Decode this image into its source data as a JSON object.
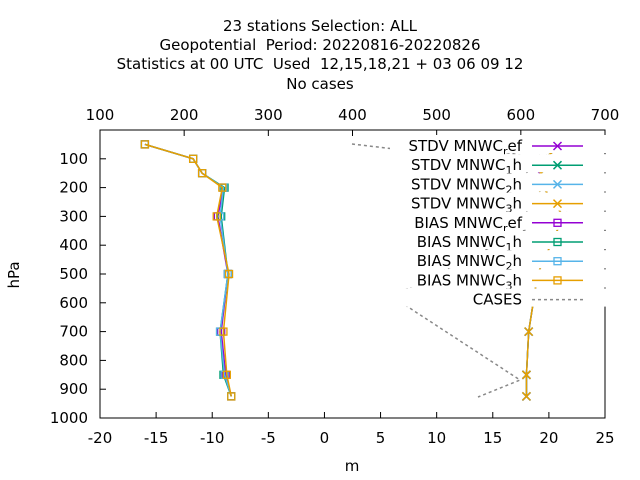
{
  "title_lines": [
    "23 stations Selection: ALL",
    "Geopotential  Period: 20220816-20220826",
    "Statistics at 00 UTC  Used  12,15,18,21 + 03 06 09 12",
    "No cases"
  ],
  "chart_data": {
    "type": "line",
    "xlabel": "m",
    "ylabel": "hPa",
    "xlim": [
      -20,
      25
    ],
    "ylim": [
      1000,
      0
    ],
    "x_ticks": [
      "-20",
      "-15",
      "-10",
      "-5",
      "0",
      "5",
      "10",
      "15",
      "20",
      "25"
    ],
    "y_ticks": [
      "100",
      "200",
      "300",
      "400",
      "500",
      "600",
      "700",
      "800",
      "900",
      "1000"
    ],
    "x2lim": [
      100,
      700
    ],
    "x2_ticks": [
      "100",
      "200",
      "300",
      "400",
      "500",
      "600",
      "700"
    ],
    "legend_position": "top-right",
    "levels": [
      50,
      100,
      150,
      200,
      300,
      500,
      700,
      850,
      925
    ],
    "series": [
      {
        "name": "STDV MNWC_ref",
        "label_main": "STDV MNWC",
        "label_sub": "r",
        "label_tail": "ef",
        "color": "#9400d3",
        "marker": "x",
        "dash": "",
        "axis": "x1",
        "values": [
          21.3,
          19.5,
          19.2,
          19.5,
          21.3,
          19.0,
          18.2,
          18.0,
          18.0
        ]
      },
      {
        "name": "STDV MNWC_1h",
        "label_main": "STDV MNWC",
        "label_sub": "1",
        "label_tail": "h",
        "color": "#009e73",
        "marker": "x",
        "dash": "",
        "axis": "x1",
        "values": [
          21.3,
          19.5,
          19.3,
          19.5,
          21.3,
          19.0,
          18.2,
          18.0,
          18.0
        ]
      },
      {
        "name": "STDV MNWC_2h",
        "label_main": "STDV MNWC",
        "label_sub": "2",
        "label_tail": "h",
        "color": "#56b4e9",
        "marker": "x",
        "dash": "",
        "axis": "x1",
        "values": [
          21.3,
          19.5,
          19.3,
          19.5,
          21.3,
          19.0,
          18.2,
          18.0,
          18.0
        ]
      },
      {
        "name": "STDV MNWC_3h",
        "label_main": "STDV MNWC",
        "label_sub": "3",
        "label_tail": "h",
        "color": "#e69f00",
        "marker": "x",
        "dash": "",
        "axis": "x1",
        "values": [
          21.3,
          19.5,
          19.3,
          19.5,
          21.3,
          19.0,
          18.2,
          18.0,
          18.0
        ]
      },
      {
        "name": "BIAS MNWC_ref",
        "label_main": "BIAS MNWC",
        "label_sub": "r",
        "label_tail": "ef",
        "color": "#9400d3",
        "marker": "square",
        "dash": "",
        "axis": "x1",
        "values": [
          -16.0,
          -11.7,
          -10.9,
          -9.0,
          -9.5,
          -8.6,
          -9.2,
          -8.8,
          -8.3
        ]
      },
      {
        "name": "BIAS MNWC_1h",
        "label_main": "BIAS MNWC",
        "label_sub": "1",
        "label_tail": "h",
        "color": "#009e73",
        "marker": "square",
        "dash": "",
        "axis": "x1",
        "values": [
          -16.0,
          -11.7,
          -10.9,
          -8.9,
          -9.2,
          -8.6,
          -9.3,
          -9.0,
          -8.3
        ]
      },
      {
        "name": "BIAS MNWC_2h",
        "label_main": "BIAS MNWC",
        "label_sub": "2",
        "label_tail": "h",
        "color": "#56b4e9",
        "marker": "square",
        "dash": "",
        "axis": "x1",
        "values": [
          -16.0,
          -11.7,
          -10.9,
          -9.0,
          -9.3,
          -8.6,
          -9.3,
          -8.9,
          -8.3
        ]
      },
      {
        "name": "BIAS MNWC_3h",
        "label_main": "BIAS MNWC",
        "label_sub": "3",
        "label_tail": "h",
        "color": "#e69f00",
        "marker": "square",
        "dash": "",
        "axis": "x1",
        "values": [
          -16.0,
          -11.7,
          -10.9,
          -9.1,
          -9.6,
          -8.5,
          -9.0,
          -8.7,
          -8.3
        ]
      },
      {
        "name": "CASES",
        "label_main": "CASES",
        "label_sub": "",
        "label_tail": "",
        "color": "#888888",
        "marker": "none",
        "dash": "3,3",
        "axis": "x2",
        "values": [
          100,
          100,
          100,
          100,
          100,
          100,
          100,
          100,
          100
        ],
        "note": "no cases; right-hand axis"
      }
    ]
  }
}
